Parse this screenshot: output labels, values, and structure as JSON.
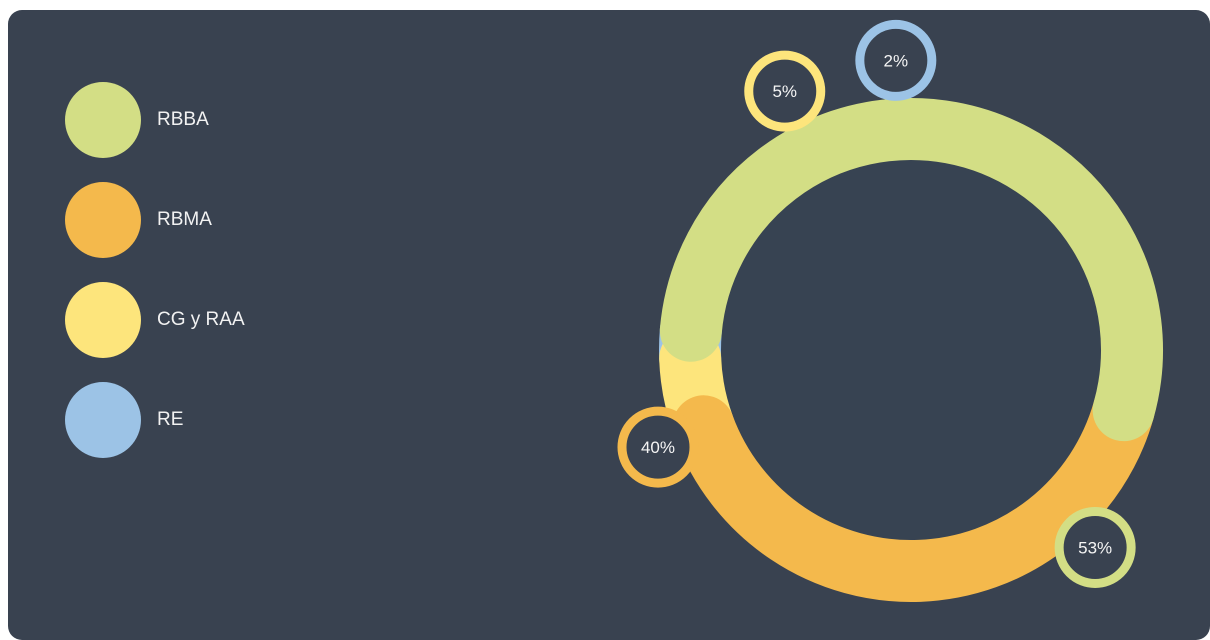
{
  "colors": {
    "background": "#394250",
    "hole": "#374352",
    "text": "#f5f5f5"
  },
  "chart_data": {
    "type": "pie",
    "title": "",
    "categories": [
      "RBBA",
      "RBMA",
      "CG y RAA",
      "RE"
    ],
    "values": [
      53,
      40,
      5,
      2
    ],
    "labels": [
      "53%",
      "40%",
      "5%",
      "2%"
    ],
    "colors": [
      "#d3de85",
      "#f4b94c",
      "#fde57c",
      "#9cc3e6"
    ],
    "legend": "left"
  }
}
